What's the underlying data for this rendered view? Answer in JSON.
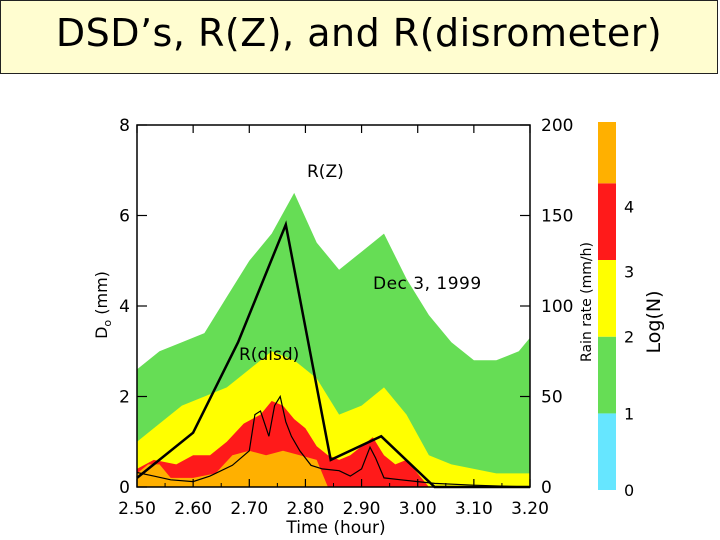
{
  "title": "DSD’s, R(Z), and R(disrometer)",
  "chart_data": {
    "type": "heatmap",
    "xlabel": "Time (hour)",
    "x_ticks": [
      "2.50",
      "2.60",
      "2.70",
      "2.80",
      "2.90",
      "3.00",
      "3.10",
      "3.20"
    ],
    "xlim": [
      2.5,
      3.2
    ],
    "left_axis": {
      "label_main": "D",
      "label_sub": "o",
      "label_unit": " (mm)",
      "ticks": [
        "0",
        "2",
        "4",
        "6",
        "8"
      ],
      "ylim": [
        0,
        8
      ]
    },
    "right_axis": {
      "label": "Rain rate (mm/h)",
      "ticks": [
        "0",
        "50",
        "100",
        "150",
        "200"
      ],
      "ylim": [
        0,
        200
      ]
    },
    "colorbar": {
      "label": "Log(N)",
      "ticks": [
        "0",
        "1",
        "2",
        "3",
        "4"
      ],
      "colors": [
        "#66e6ff",
        "#66dd55",
        "#ffff00",
        "#ff1a1a",
        "#ffb000"
      ],
      "segments": [
        [
          0,
          1
        ],
        [
          1,
          2
        ],
        [
          2,
          3
        ],
        [
          3,
          4
        ],
        [
          4,
          4.8
        ]
      ]
    },
    "annotations": [
      "R(Z)",
      "Dec 3, 1999",
      "R(disd)"
    ],
    "series": [
      {
        "name": "R(Z)",
        "x": [
          2.5,
          2.6,
          2.68,
          2.765,
          2.845,
          2.935,
          3.03,
          3.2
        ],
        "values": [
          5,
          30,
          80,
          145,
          15,
          28,
          0,
          0
        ]
      },
      {
        "name": "R(disd)",
        "x": [
          2.5,
          2.53,
          2.56,
          2.6,
          2.63,
          2.67,
          2.7,
          2.71,
          2.72,
          2.735,
          2.745,
          2.755,
          2.765,
          2.775,
          2.79,
          2.81,
          2.83,
          2.86,
          2.88,
          2.9,
          2.915,
          2.925,
          2.94,
          2.97,
          3.0,
          3.03,
          3.1,
          3.2
        ],
        "values": [
          8,
          6,
          4,
          3,
          6,
          12,
          20,
          40,
          42,
          28,
          45,
          50,
          36,
          28,
          20,
          12,
          10,
          9,
          6,
          10,
          22,
          16,
          5,
          4,
          3,
          2,
          1,
          0
        ]
      }
    ],
    "regions": [
      {
        "level": 1,
        "x": [
          2.5,
          2.54,
          2.58,
          2.62,
          2.66,
          2.7,
          2.74,
          2.78,
          2.82,
          2.86,
          2.9,
          2.94,
          2.98,
          3.02,
          3.06,
          3.1,
          3.14,
          3.18,
          3.2
        ],
        "ymax": [
          2.6,
          3.0,
          3.2,
          3.4,
          4.2,
          5.0,
          5.6,
          6.5,
          5.4,
          4.8,
          5.2,
          5.6,
          4.6,
          3.8,
          3.2,
          2.8,
          2.8,
          3.0,
          3.3
        ]
      },
      {
        "level": 2,
        "x": [
          2.5,
          2.54,
          2.58,
          2.62,
          2.66,
          2.7,
          2.74,
          2.78,
          2.82,
          2.86,
          2.9,
          2.94,
          2.98,
          3.02,
          3.06,
          3.1,
          3.14,
          3.18,
          3.2
        ],
        "ymax": [
          1.0,
          1.4,
          1.8,
          2.0,
          2.2,
          2.6,
          3.0,
          2.8,
          2.4,
          1.6,
          1.8,
          2.2,
          1.6,
          0.7,
          0.5,
          0.4,
          0.3,
          0.3,
          0.3
        ]
      },
      {
        "level": 3,
        "x": [
          2.5,
          2.53,
          2.57,
          2.6,
          2.63,
          2.66,
          2.69,
          2.72,
          2.74,
          2.76,
          2.78,
          2.8,
          2.82,
          2.84,
          2.86,
          2.88,
          2.9,
          2.92,
          2.94,
          2.96,
          2.98,
          3.0,
          3.02
        ],
        "ymax": [
          0.4,
          0.6,
          0.5,
          0.7,
          0.7,
          1.0,
          1.4,
          1.6,
          1.9,
          1.8,
          1.5,
          1.3,
          0.9,
          0.7,
          0.6,
          0.7,
          0.9,
          1.1,
          0.7,
          0.5,
          0.6,
          0.3,
          0.0
        ]
      },
      {
        "level": 4,
        "x": [
          2.5,
          2.52,
          2.54,
          2.56,
          2.6,
          2.64,
          2.67,
          2.7,
          2.73,
          2.76,
          2.79,
          2.82,
          2.84
        ],
        "ymax": [
          0.3,
          0.5,
          0.5,
          0.2,
          0.2,
          0.3,
          0.7,
          0.8,
          0.7,
          0.8,
          0.7,
          0.6,
          0.0
        ]
      }
    ]
  }
}
